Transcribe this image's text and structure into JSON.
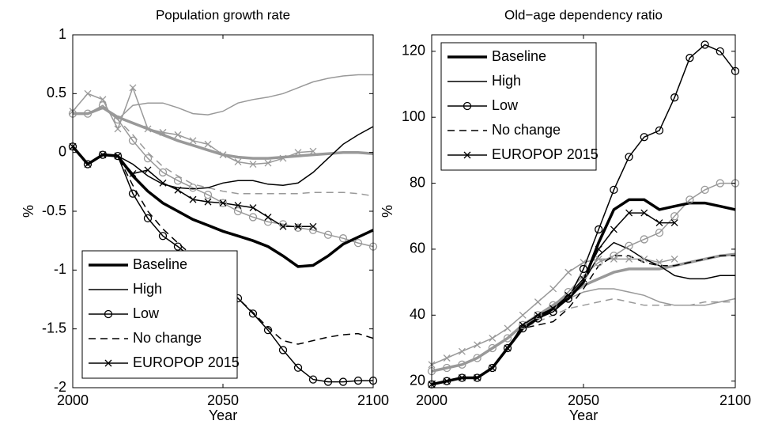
{
  "chart_data": [
    {
      "type": "line",
      "title": "Population growth rate",
      "xlabel": "Year",
      "ylabel": "%",
      "x": [
        2000,
        2005,
        2010,
        2015,
        2020,
        2025,
        2030,
        2035,
        2040,
        2045,
        2050,
        2055,
        2060,
        2065,
        2070,
        2075,
        2080,
        2085,
        2090,
        2095,
        2100
      ],
      "xlim": [
        2000,
        2100
      ],
      "xticks": [
        2000,
        2050,
        2100
      ],
      "ylim": [
        -2,
        1
      ],
      "yticks": [
        -2,
        -1.5,
        -1,
        -0.5,
        0,
        0.5,
        1
      ],
      "legend": "lower left",
      "series": [
        {
          "name": "Baseline",
          "color": "#000000",
          "width": 3.5,
          "dash": "solid",
          "marker": "none",
          "values": [
            0.05,
            -0.1,
            -0.02,
            -0.03,
            -0.2,
            -0.33,
            -0.43,
            -0.5,
            -0.57,
            -0.62,
            -0.67,
            -0.71,
            -0.75,
            -0.8,
            -0.88,
            -0.97,
            -0.96,
            -0.88,
            -0.78,
            -0.72,
            -0.66
          ]
        },
        {
          "name": "High",
          "color": "#000000",
          "width": 1.5,
          "dash": "solid",
          "marker": "none",
          "values": [
            0.05,
            -0.1,
            -0.02,
            -0.03,
            -0.1,
            -0.2,
            -0.27,
            -0.3,
            -0.31,
            -0.3,
            -0.26,
            -0.24,
            -0.24,
            -0.27,
            -0.28,
            -0.26,
            -0.17,
            -0.05,
            0.07,
            0.15,
            0.22
          ]
        },
        {
          "name": "Low",
          "color": "#000000",
          "width": 1.5,
          "dash": "solid",
          "marker": "circle",
          "values": [
            0.05,
            -0.1,
            -0.02,
            -0.03,
            -0.35,
            -0.56,
            -0.71,
            -0.8,
            -0.9,
            -1.01,
            -1.13,
            -1.24,
            -1.37,
            -1.51,
            -1.68,
            -1.83,
            -1.93,
            -1.95,
            -1.95,
            -1.94,
            -1.94
          ]
        },
        {
          "name": "No change",
          "color": "#000000",
          "width": 1.5,
          "dash": "dashed",
          "marker": "none",
          "values": [
            0.05,
            -0.1,
            -0.02,
            -0.03,
            -0.28,
            -0.5,
            -0.65,
            -0.77,
            -0.88,
            -1.0,
            -1.13,
            -1.24,
            -1.36,
            -1.49,
            -1.6,
            -1.63,
            -1.6,
            -1.57,
            -1.55,
            -1.54,
            -1.58
          ]
        },
        {
          "name": "EUROPOP 2015",
          "color": "#000000",
          "width": 1.5,
          "dash": "solid",
          "marker": "cross",
          "values": [
            0.05,
            -0.1,
            -0.02,
            -0.03,
            -0.18,
            -0.15,
            -0.26,
            -0.32,
            -0.4,
            -0.42,
            -0.43,
            -0.45,
            -0.47,
            -0.55,
            -0.63,
            -0.63,
            -0.63,
            null,
            null,
            null,
            null
          ]
        },
        {
          "color": "#999999",
          "width": 3.5,
          "dash": "solid",
          "marker": "none",
          "values": [
            0.33,
            0.33,
            0.38,
            0.3,
            0.25,
            0.2,
            0.15,
            0.1,
            0.06,
            0.02,
            -0.02,
            -0.04,
            -0.05,
            -0.05,
            -0.04,
            -0.03,
            -0.02,
            -0.01,
            0,
            0,
            -0.01
          ]
        },
        {
          "color": "#999999",
          "width": 1.5,
          "dash": "solid",
          "marker": "none",
          "values": [
            0.33,
            0.33,
            0.38,
            0.28,
            0.4,
            0.42,
            0.42,
            0.38,
            0.33,
            0.32,
            0.35,
            0.42,
            0.45,
            0.47,
            0.5,
            0.55,
            0.6,
            0.63,
            0.65,
            0.66,
            0.66
          ]
        },
        {
          "color": "#999999",
          "width": 1.5,
          "dash": "solid",
          "marker": "circle",
          "values": [
            0.33,
            0.33,
            0.4,
            0.28,
            0.1,
            -0.05,
            -0.17,
            -0.24,
            -0.3,
            -0.36,
            -0.43,
            -0.5,
            -0.55,
            -0.59,
            -0.61,
            -0.64,
            -0.66,
            -0.7,
            -0.73,
            -0.77,
            -0.8
          ]
        },
        {
          "color": "#999999",
          "width": 1.5,
          "dash": "dashed",
          "marker": "none",
          "values": [
            0.33,
            0.33,
            0.38,
            0.28,
            0.15,
            0.0,
            -0.12,
            -0.2,
            -0.27,
            -0.3,
            -0.33,
            -0.35,
            -0.35,
            -0.35,
            -0.35,
            -0.35,
            -0.34,
            -0.34,
            -0.34,
            -0.35,
            -0.37
          ]
        },
        {
          "color": "#999999",
          "width": 1.5,
          "dash": "solid",
          "marker": "cross",
          "values": [
            0.35,
            0.5,
            0.45,
            0.2,
            0.55,
            0.2,
            0.17,
            0.15,
            0.1,
            0.07,
            -0.02,
            -0.08,
            -0.1,
            -0.09,
            -0.05,
            0,
            0.01,
            null,
            null,
            null,
            null
          ]
        }
      ]
    },
    {
      "type": "line",
      "title": "Old−age dependency ratio",
      "xlabel": "Year",
      "ylabel": "%",
      "x": [
        2000,
        2005,
        2010,
        2015,
        2020,
        2025,
        2030,
        2035,
        2040,
        2045,
        2050,
        2055,
        2060,
        2065,
        2070,
        2075,
        2080,
        2085,
        2090,
        2095,
        2100
      ],
      "xlim": [
        2000,
        2100
      ],
      "xticks": [
        2000,
        2050,
        2100
      ],
      "ylim": [
        18,
        125
      ],
      "yticks": [
        20,
        40,
        60,
        80,
        100,
        120
      ],
      "legend": "upper left",
      "series": [
        {
          "name": "Baseline",
          "color": "#000000",
          "width": 3.5,
          "dash": "solid",
          "marker": "none",
          "values": [
            19,
            20,
            21,
            21,
            24,
            30,
            36,
            39,
            42,
            45,
            50,
            62,
            72,
            75,
            75,
            72,
            73,
            74,
            74,
            73,
            72
          ]
        },
        {
          "name": "High",
          "color": "#000000",
          "width": 1.5,
          "dash": "solid",
          "marker": "none",
          "values": [
            19,
            20,
            21,
            21,
            24,
            30,
            36,
            39,
            42,
            45,
            50,
            58,
            62,
            60,
            57,
            55,
            52,
            51,
            51,
            52,
            52
          ]
        },
        {
          "name": "Low",
          "color": "#000000",
          "width": 1.5,
          "dash": "solid",
          "marker": "circle",
          "values": [
            19,
            20,
            21,
            21,
            24,
            30,
            36,
            39,
            41,
            45,
            54,
            66,
            78,
            88,
            94,
            96,
            106,
            118,
            122,
            120,
            114
          ]
        },
        {
          "name": "No change",
          "color": "#000000",
          "width": 1.5,
          "dash": "dashed",
          "marker": "none",
          "values": [
            19,
            20,
            21,
            21,
            24,
            30,
            36,
            37,
            38,
            42,
            48,
            55,
            58,
            58,
            56,
            55,
            55,
            56,
            57,
            58,
            58
          ]
        },
        {
          "name": "EUROPOP 2015",
          "color": "#000000",
          "width": 1.5,
          "dash": "solid",
          "marker": "cross",
          "values": [
            19,
            20,
            21,
            21,
            24,
            30,
            37,
            40,
            42,
            46,
            51,
            60,
            66,
            71,
            71,
            68,
            68,
            null,
            null,
            null,
            null
          ]
        },
        {
          "color": "#999999",
          "width": 3.5,
          "dash": "solid",
          "marker": "none",
          "values": [
            23,
            24,
            25,
            27,
            30,
            33,
            37,
            40,
            43,
            46,
            49,
            51,
            53,
            54,
            54,
            54,
            55,
            56,
            57,
            58,
            58.5
          ]
        },
        {
          "color": "#999999",
          "width": 1.5,
          "dash": "solid",
          "marker": "none",
          "values": [
            23,
            24,
            25,
            27,
            30,
            33,
            37,
            40,
            43,
            45,
            47,
            48,
            48,
            47,
            46,
            44,
            43,
            43,
            43,
            44,
            45
          ]
        },
        {
          "color": "#999999",
          "width": 1.5,
          "dash": "solid",
          "marker": "circle",
          "values": [
            23,
            24,
            25,
            27,
            30,
            33,
            37,
            40,
            43,
            47,
            52,
            56,
            58,
            61,
            63,
            65,
            70,
            75,
            78,
            80,
            80
          ]
        },
        {
          "color": "#999999",
          "width": 1.5,
          "dash": "dashed",
          "marker": "none",
          "values": [
            23,
            24,
            25,
            27,
            30,
            33,
            36,
            38,
            40,
            42,
            43,
            44,
            45,
            44,
            43,
            43,
            43,
            43,
            44,
            44,
            44
          ]
        },
        {
          "color": "#999999",
          "width": 1.5,
          "dash": "solid",
          "marker": "cross",
          "values": [
            25,
            27,
            29,
            31,
            33,
            36,
            40,
            44,
            48,
            53,
            56,
            57,
            57,
            57,
            57,
            56,
            57,
            null,
            null,
            null,
            null
          ]
        }
      ]
    }
  ]
}
